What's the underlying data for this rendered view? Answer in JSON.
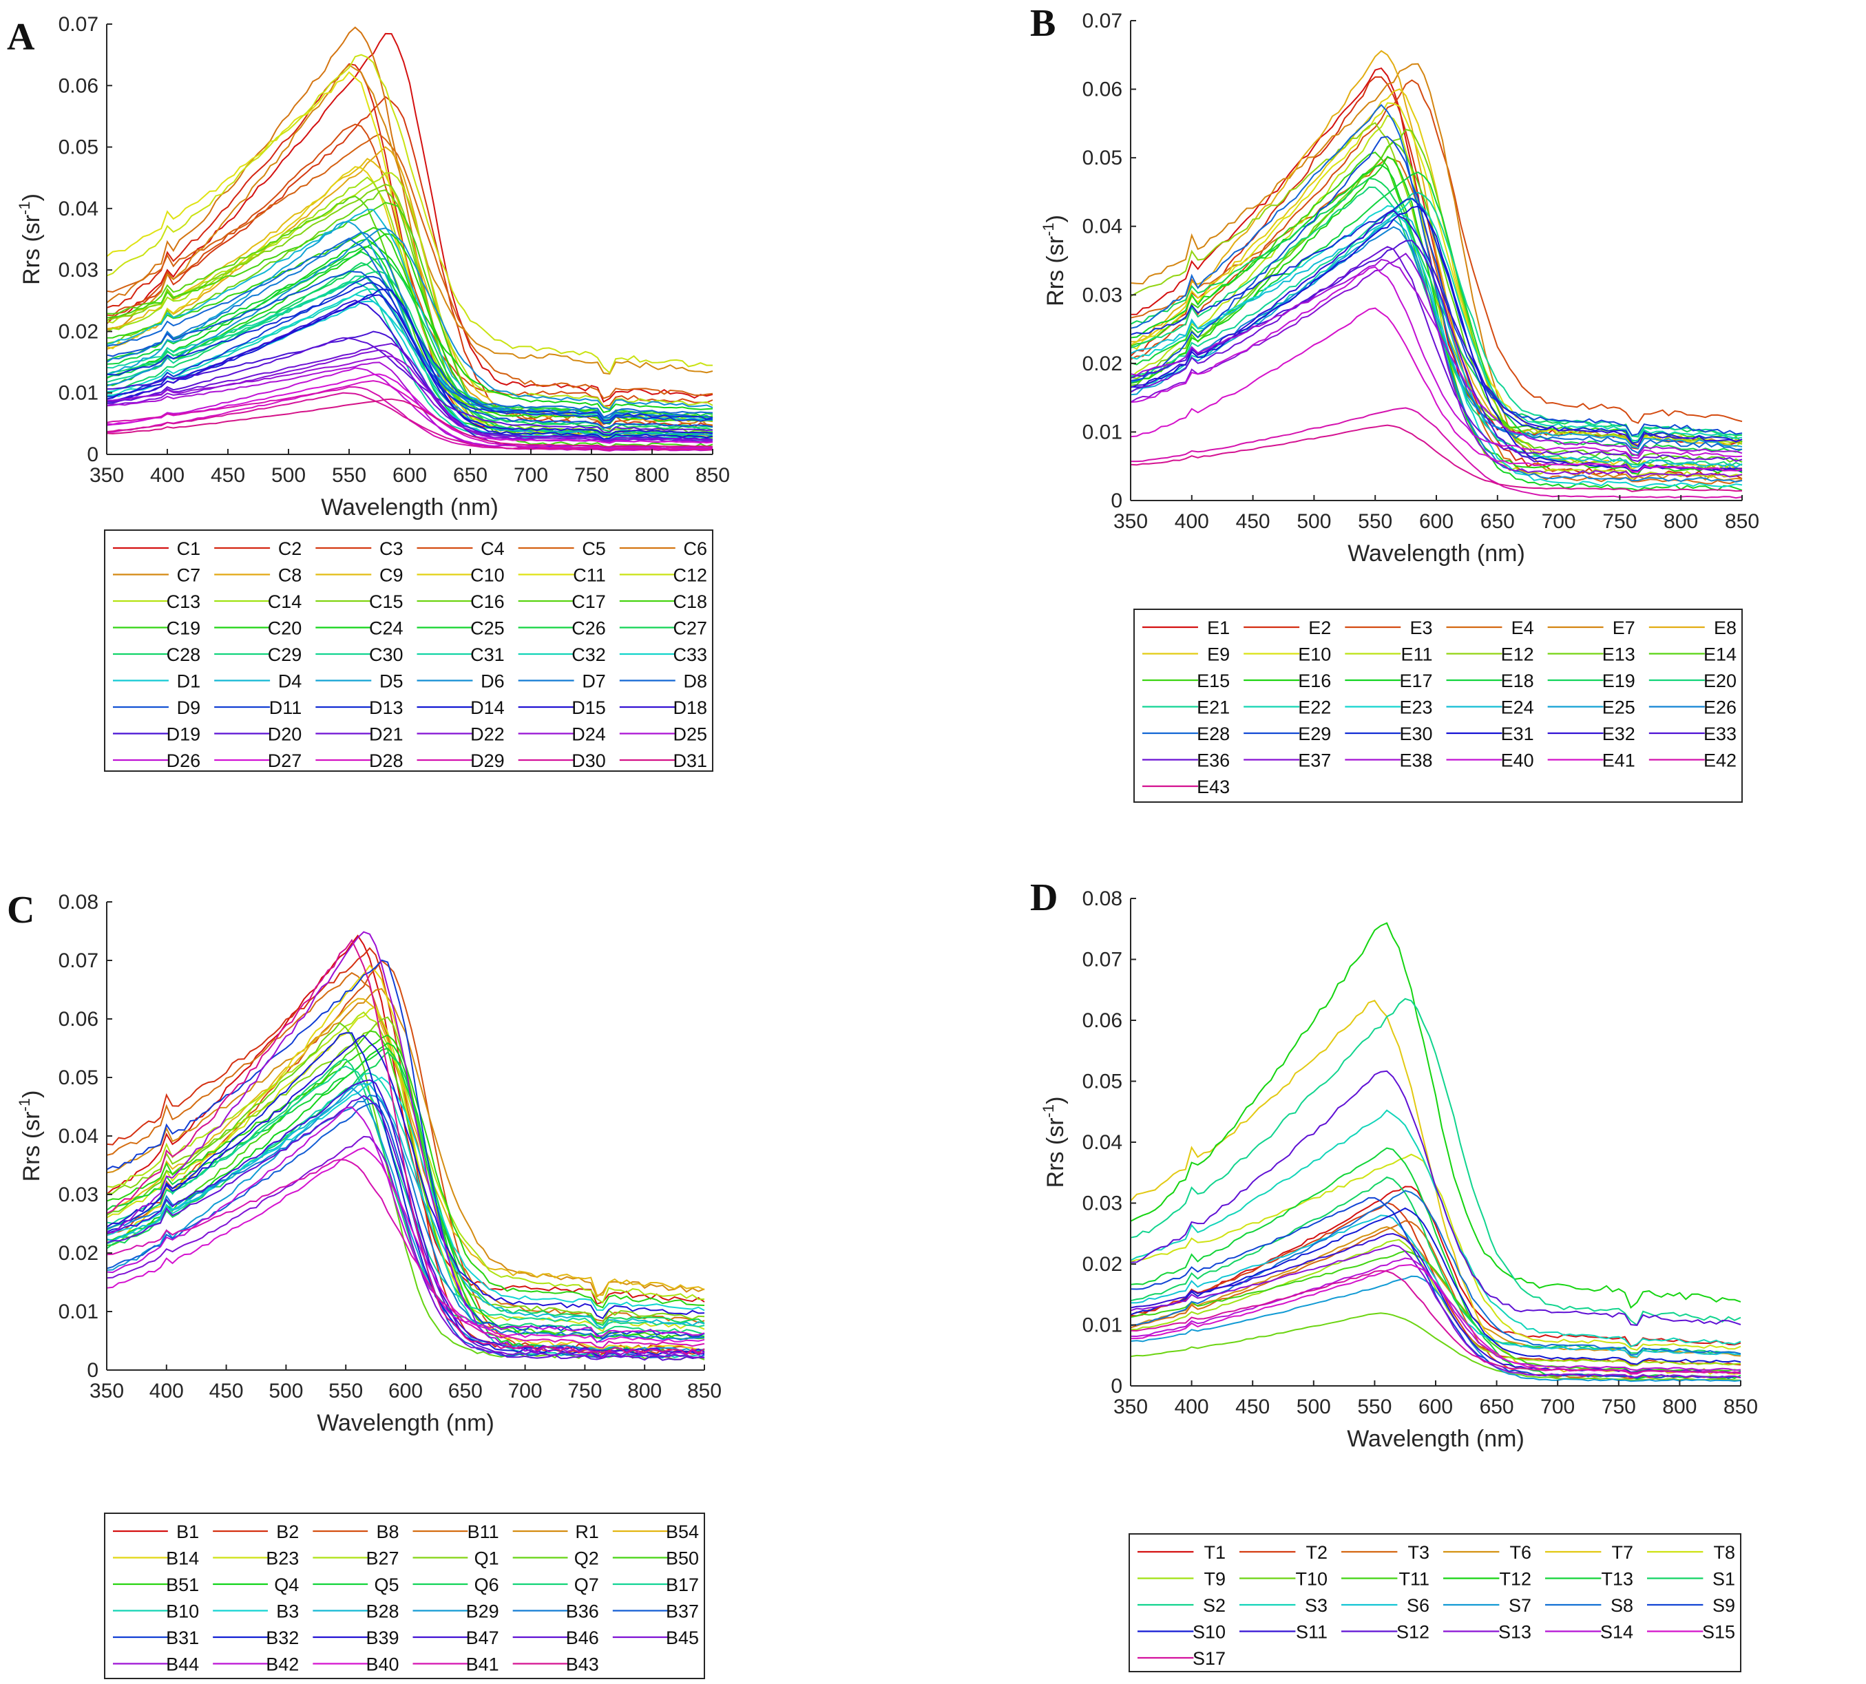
{
  "figure": {
    "panels": [
      {
        "label": "A",
        "chart_data": {
          "type": "line",
          "xlabel": "Wavelength (nm)",
          "ylabel": "Rrs (sr",
          "ylabel_sup": "-1",
          "ylabel_end": ")",
          "xlim": [
            350,
            850
          ],
          "ylim": [
            0,
            0.07
          ],
          "xticks": [
            "350",
            "400",
            "450",
            "500",
            "550",
            "600",
            "650",
            "700",
            "750",
            "800",
            "850"
          ],
          "yticks": [
            "0",
            "0.01",
            "0.02",
            "0.03",
            "0.04",
            "0.05",
            "0.06",
            "0.07"
          ],
          "legend": [
            "C1",
            "C2",
            "C3",
            "C4",
            "C5",
            "C6",
            "C7",
            "C8",
            "C9",
            "C10",
            "C11",
            "C12",
            "C13",
            "C14",
            "C15",
            "C16",
            "C17",
            "C18",
            "C19",
            "C20",
            "C24",
            "C25",
            "C26",
            "C27",
            "C28",
            "C29",
            "C30",
            "C31",
            "C32",
            "C33",
            "D1",
            "D4",
            "D5",
            "D6",
            "D7",
            "D8",
            "D9",
            "D11",
            "D13",
            "D14",
            "D15",
            "D18",
            "D19",
            "D20",
            "D21",
            "D22",
            "D24",
            "D25",
            "D26",
            "D27",
            "D28",
            "D29",
            "D30",
            "D31"
          ],
          "series_peaks": [
            0.0685,
            0.064,
            0.058,
            0.054,
            0.052,
            0.0695,
            0.0635,
            0.05,
            0.048,
            0.047,
            0.062,
            0.065,
            0.046,
            0.045,
            0.044,
            0.043,
            0.042,
            0.041,
            0.037,
            0.036,
            0.035,
            0.034,
            0.033,
            0.032,
            0.031,
            0.03,
            0.029,
            0.028,
            0.027,
            0.026,
            0.025,
            0.04,
            0.038,
            0.037,
            0.036,
            0.035,
            0.03,
            0.029,
            0.028,
            0.027,
            0.026,
            0.025,
            0.02,
            0.019,
            0.018,
            0.017,
            0.016,
            0.015,
            0.014,
            0.013,
            0.012,
            0.011,
            0.01,
            0.009
          ]
        }
      },
      {
        "label": "B",
        "chart_data": {
          "type": "line",
          "xlabel": "Wavelength (nm)",
          "ylabel": "Rrs (sr",
          "ylabel_sup": "-1",
          "ylabel_end": ")",
          "xlim": [
            350,
            850
          ],
          "ylim": [
            0,
            0.07
          ],
          "xticks": [
            "350",
            "400",
            "450",
            "500",
            "550",
            "600",
            "650",
            "700",
            "750",
            "800",
            "850"
          ],
          "yticks": [
            "0",
            "0.01",
            "0.02",
            "0.03",
            "0.04",
            "0.05",
            "0.06",
            "0.07"
          ],
          "legend": [
            "E1",
            "E2",
            "E3",
            "E4",
            "E7",
            "E8",
            "E9",
            "E10",
            "E11",
            "E12",
            "E13",
            "E14",
            "E15",
            "E16",
            "E17",
            "E18",
            "E19",
            "E20",
            "E21",
            "E22",
            "E23",
            "E24",
            "E25",
            "E26",
            "E28",
            "E29",
            "E30",
            "E31",
            "E32",
            "E33",
            "E36",
            "E37",
            "E38",
            "E40",
            "E41",
            "E42",
            "E43"
          ],
          "series_peaks": [
            0.063,
            0.062,
            0.061,
            0.05,
            0.064,
            0.066,
            0.06,
            0.058,
            0.056,
            0.055,
            0.054,
            0.052,
            0.051,
            0.05,
            0.049,
            0.048,
            0.047,
            0.046,
            0.045,
            0.044,
            0.043,
            0.042,
            0.041,
            0.04,
            0.0575,
            0.053,
            0.044,
            0.043,
            0.042,
            0.038,
            0.037,
            0.036,
            0.035,
            0.034,
            0.028,
            0.0135,
            0.011
          ]
        }
      },
      {
        "label": "C",
        "chart_data": {
          "type": "line",
          "xlabel": "Wavelength (nm)",
          "ylabel": "Rrs (sr",
          "ylabel_sup": "-1",
          "ylabel_end": ")",
          "xlim": [
            350,
            850
          ],
          "ylim": [
            0,
            0.08
          ],
          "xticks": [
            "350",
            "400",
            "450",
            "500",
            "550",
            "600",
            "650",
            "700",
            "750",
            "800",
            "850"
          ],
          "yticks": [
            "0",
            "0.01",
            "0.02",
            "0.03",
            "0.04",
            "0.05",
            "0.06",
            "0.07",
            "0.08"
          ],
          "legend": [
            "B1",
            "B2",
            "B8",
            "B11",
            "R1",
            "B54",
            "B14",
            "B23",
            "B27",
            "Q1",
            "Q2",
            "B50",
            "B51",
            "Q4",
            "Q5",
            "Q6",
            "Q7",
            "B17",
            "B10",
            "B3",
            "B28",
            "B29",
            "B36",
            "B37",
            "B31",
            "B32",
            "B39",
            "B47",
            "B46",
            "B45",
            "B44",
            "B42",
            "B40",
            "B41",
            "B43"
          ],
          "series_peaks": [
            0.074,
            0.072,
            0.07,
            0.068,
            0.065,
            0.064,
            0.069,
            0.062,
            0.061,
            0.06,
            0.059,
            0.058,
            0.057,
            0.056,
            0.055,
            0.054,
            0.053,
            0.052,
            0.051,
            0.05,
            0.049,
            0.048,
            0.047,
            0.046,
            0.07,
            0.058,
            0.057,
            0.05,
            0.047,
            0.04,
            0.075,
            0.045,
            0.038,
            0.036,
            0.073
          ]
        }
      },
      {
        "label": "D",
        "chart_data": {
          "type": "line",
          "xlabel": "Wavelength (nm)",
          "ylabel": "Rrs (sr",
          "ylabel_sup": "-1",
          "ylabel_end": ")",
          "xlim": [
            350,
            850
          ],
          "ylim": [
            0,
            0.08
          ],
          "xticks": [
            "350",
            "400",
            "450",
            "500",
            "550",
            "600",
            "650",
            "700",
            "750",
            "800",
            "850"
          ],
          "yticks": [
            "0",
            "0.01",
            "0.02",
            "0.03",
            "0.04",
            "0.05",
            "0.06",
            "0.07",
            "0.08"
          ],
          "legend": [
            "T1",
            "T2",
            "T3",
            "T6",
            "T7",
            "T8",
            "T9",
            "T10",
            "T11",
            "T12",
            "T13",
            "S1",
            "S2",
            "S3",
            "S6",
            "S7",
            "S8",
            "S9",
            "S10",
            "S11",
            "S12",
            "S13",
            "S14",
            "S15",
            "S17"
          ],
          "series_peaks": [
            0.033,
            0.03,
            0.027,
            0.026,
            0.063,
            0.038,
            0.024,
            0.012,
            0.022,
            0.076,
            0.039,
            0.034,
            0.0635,
            0.045,
            0.028,
            0.018,
            0.032,
            0.031,
            0.029,
            0.025,
            0.052,
            0.023,
            0.021,
            0.02,
            0.019
          ]
        }
      }
    ]
  }
}
